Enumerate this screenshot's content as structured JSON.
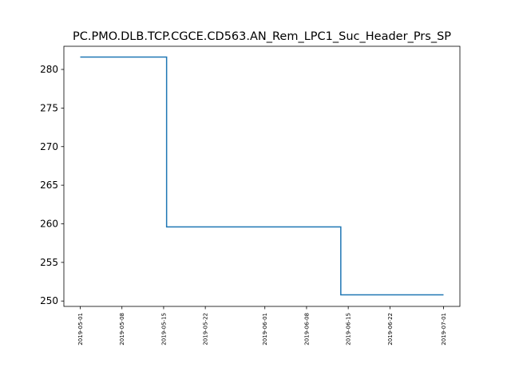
{
  "chart_data": {
    "type": "line",
    "title": "PC.PMO.DLB.TCP.CGCE.CD563.AN_Rem_LPC1_Suc_Header_Prs_SP",
    "xlabel": "",
    "ylabel": "",
    "drawstyle": "steps-post",
    "grid": false,
    "legend": "none",
    "color": "#1f77b4",
    "x_ticks": [
      "2019-05-01",
      "2019-05-08",
      "2019-05-15",
      "2019-05-22",
      "2019-06-01",
      "2019-06-08",
      "2019-06-15",
      "2019-06-22",
      "2019-07-01"
    ],
    "y_ticks": [
      250,
      255,
      260,
      265,
      270,
      275,
      280
    ],
    "xlim": [
      "2019-04-28T06:00",
      "2019-07-03T18:00"
    ],
    "ylim": [
      249.3,
      283.0
    ],
    "series": [
      {
        "x": [
          "2019-05-01",
          "2019-05-15T12:00",
          "2019-06-13T18:00",
          "2019-07-01"
        ],
        "y": [
          281.6,
          259.6,
          250.8,
          250.8
        ]
      }
    ]
  }
}
